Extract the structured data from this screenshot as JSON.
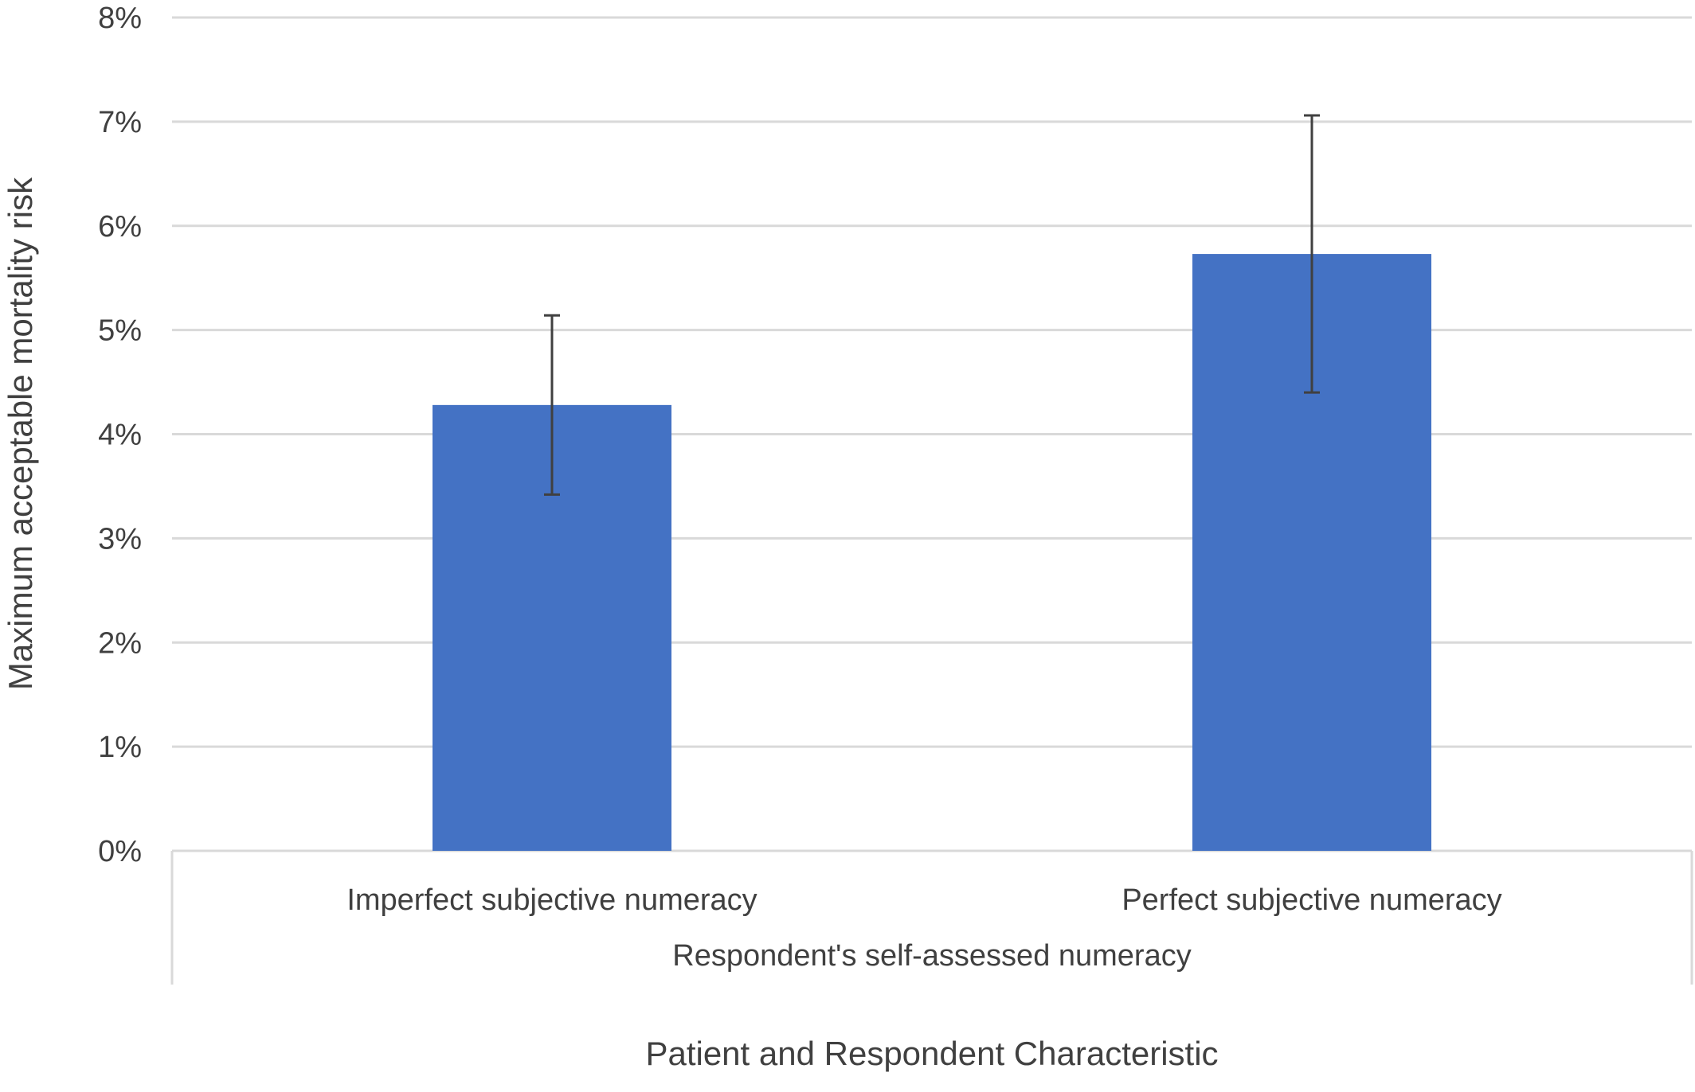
{
  "chart_data": {
    "type": "bar",
    "title": "",
    "xlabel": "Patient and Respondent Characteristic",
    "ylabel": "Maximum acceptable mortality risk",
    "group_label": "Respondent's self-assessed numeracy",
    "categories": [
      "Imperfect subjective numeracy",
      "Perfect subjective numeracy"
    ],
    "values": [
      4.28,
      5.73
    ],
    "error_low": [
      3.42,
      4.4
    ],
    "error_high": [
      5.14,
      7.06
    ],
    "ylim": [
      0,
      8
    ],
    "yticks": [
      0,
      1,
      2,
      3,
      4,
      5,
      6,
      7,
      8
    ],
    "ytick_labels": [
      "0%",
      "1%",
      "2%",
      "3%",
      "4%",
      "5%",
      "6%",
      "7%",
      "8%"
    ],
    "grid": true,
    "legend": "none",
    "bar_color": "#4472C4",
    "errorbar_color": "#404040",
    "gridline_color": "#D9D9D9"
  }
}
